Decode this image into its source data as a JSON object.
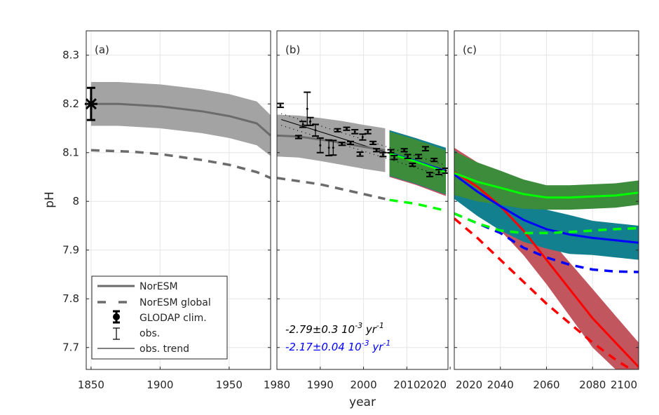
{
  "chart_data": {
    "type": "line",
    "ylabel": "pH",
    "xlabel": "year",
    "ylim": [
      7.655,
      8.35
    ],
    "yticks": [
      8.3,
      8.2,
      8.1,
      8,
      7.9,
      7.8,
      7.7
    ],
    "ytick_labels": [
      "8.3",
      "8.2",
      "8.1",
      "8",
      "7.9",
      "7.8",
      "7.7"
    ],
    "grid": true,
    "colors": {
      "noresm": "#6b6b6b",
      "noresm_band": "#a3a3a3",
      "green": "#00ff00",
      "green_band": "#3c8c3c",
      "blue": "#0000ff",
      "blue_band": "#13808f",
      "red": "#ff0000",
      "red_band": "#c2565e",
      "obs": "#000000"
    },
    "legend": {
      "placement": "bottom-left of panel (a)",
      "entries": [
        "NorESM",
        "NorESM global",
        "GLODAP clim.",
        "obs.",
        "obs. trend"
      ]
    },
    "panels": [
      {
        "label": "(a)",
        "xlim": [
          1846.5,
          1980
        ],
        "xticks": [
          1850,
          1900,
          1950
        ],
        "xtick_labels": [
          "1850",
          "1900",
          "1950"
        ],
        "series": [
          {
            "id": "noresm",
            "style": "solid",
            "color": "noresm",
            "band_color": "noresm_band",
            "x": [
              1850,
              1870,
              1900,
              1930,
              1950,
              1970,
              1980
            ],
            "y": [
              8.2,
              8.2,
              8.195,
              8.185,
              8.175,
              8.16,
              8.135
            ],
            "spread": [
              0.045,
              0.045,
              0.045,
              0.045,
              0.045,
              0.045,
              0.042
            ]
          },
          {
            "id": "noresm-global",
            "style": "dashed",
            "color": "noresm",
            "x": [
              1850,
              1880,
              1900,
              1930,
              1950,
              1970,
              1980
            ],
            "y": [
              8.105,
              8.102,
              8.097,
              8.085,
              8.075,
              8.06,
              8.048
            ]
          }
        ],
        "glodap": {
          "x": 1850,
          "y": 8.2,
          "err": 0.033
        }
      },
      {
        "label": "(b)",
        "xlim": [
          1980,
          2019.5
        ],
        "xticks": [
          1980,
          1990,
          2000,
          2010,
          2020
        ],
        "xtick_labels": [
          "1980",
          "1990",
          "2000",
          "2010",
          "2020"
        ],
        "series": [
          {
            "id": "noresm",
            "style": "solid",
            "color": "noresm",
            "band_color": "noresm_band",
            "x": [
              1980,
              1985,
              1990,
              1995,
              2000,
              2005
            ],
            "y": [
              8.135,
              8.133,
              8.127,
              8.12,
              8.112,
              8.105
            ],
            "spread": [
              0.043,
              0.043,
              0.044,
              0.045,
              0.045,
              0.045
            ]
          },
          {
            "id": "noresm-global",
            "style": "dashed",
            "color": "noresm",
            "x": [
              1980,
              1990,
              2000,
              2005
            ],
            "y": [
              8.048,
              8.035,
              8.015,
              8.005
            ]
          },
          {
            "id": "scenario-red-hist",
            "style": "solid",
            "color": "red",
            "band_color": "red_band",
            "x": [
              2006,
              2012,
              2019
            ],
            "y": [
              8.098,
              8.082,
              8.06
            ],
            "spread": [
              0.048,
              0.048,
              0.049
            ]
          },
          {
            "id": "scenario-blue-hist",
            "style": "solid",
            "color": "blue",
            "band_color": "blue_band",
            "x": [
              2006,
              2012,
              2019
            ],
            "y": [
              8.099,
              8.083,
              8.062
            ],
            "spread": [
              0.047,
              0.047,
              0.048
            ]
          },
          {
            "id": "scenario-green-hist",
            "style": "solid",
            "color": "green",
            "band_color": "green_band",
            "x": [
              2006,
              2012,
              2019
            ],
            "y": [
              8.098,
              8.082,
              8.06
            ],
            "spread": [
              0.045,
              0.045,
              0.045
            ]
          },
          {
            "id": "scenario-global-hist",
            "style": "dashed",
            "color": "green",
            "x": [
              2006,
              2012,
              2019
            ],
            "y": [
              8.003,
              7.995,
              7.981
            ]
          }
        ],
        "obs": [
          {
            "x": 1980.8,
            "y": 8.197,
            "err": 0.004
          },
          {
            "x": 1985,
            "y": 8.132,
            "err": 0.003
          },
          {
            "x": 1986,
            "y": 8.158,
            "err": 0.006
          },
          {
            "x": 1987,
            "y": 8.19,
            "err": 0.034
          },
          {
            "x": 1987.7,
            "y": 8.164,
            "err": 0.008
          },
          {
            "x": 1988.9,
            "y": 8.146,
            "err": 0.012
          },
          {
            "x": 1990,
            "y": 8.115,
            "err": 0.015
          },
          {
            "x": 1992,
            "y": 8.11,
            "err": 0.016
          },
          {
            "x": 1993,
            "y": 8.11,
            "err": 0.015
          },
          {
            "x": 1994,
            "y": 8.146,
            "err": 0.003
          },
          {
            "x": 1995,
            "y": 8.118,
            "err": 0.003
          },
          {
            "x": 1996.1,
            "y": 8.149,
            "err": 0.003
          },
          {
            "x": 1997,
            "y": 8.12,
            "err": 0.003
          },
          {
            "x": 1998,
            "y": 8.143,
            "err": 0.004
          },
          {
            "x": 1999.2,
            "y": 8.097,
            "err": 0.004
          },
          {
            "x": 1999.8,
            "y": 8.132,
            "err": 0.006
          },
          {
            "x": 2001,
            "y": 8.143,
            "err": 0.004
          },
          {
            "x": 2002.2,
            "y": 8.12,
            "err": 0.003
          },
          {
            "x": 2003,
            "y": 8.105,
            "err": 0.003
          },
          {
            "x": 2004.5,
            "y": 8.096,
            "err": 0.004
          },
          {
            "x": 2006.3,
            "y": 8.103,
            "err": 0.003
          },
          {
            "x": 2007.1,
            "y": 8.09,
            "err": 0.004
          },
          {
            "x": 2009.4,
            "y": 8.105,
            "err": 0.003
          },
          {
            "x": 2010.2,
            "y": 8.092,
            "err": 0.004
          },
          {
            "x": 2011.3,
            "y": 8.075,
            "err": 0.003
          },
          {
            "x": 2012.7,
            "y": 8.092,
            "err": 0.004
          },
          {
            "x": 2014.3,
            "y": 8.108,
            "err": 0.004
          },
          {
            "x": 2015.3,
            "y": 8.055,
            "err": 0.004
          },
          {
            "x": 2016.3,
            "y": 8.085,
            "err": 0.003
          },
          {
            "x": 2017.4,
            "y": 8.06,
            "err": 0.005
          },
          {
            "x": 2019,
            "y": 8.063,
            "err": 0.005
          }
        ],
        "obs_trend": {
          "x": [
            1981,
            2019
          ],
          "y": [
            8.168,
            8.062
          ],
          "ci": 0.012
        },
        "annotations": [
          {
            "text": "-2.79±0.3 10",
            "sup1": "-3",
            "mid": " yr",
            "sup2": "-1",
            "color": "#000000"
          },
          {
            "text": "-2.17±0.04 10",
            "sup1": "-3",
            "mid": " yr",
            "sup2": "-1",
            "color": "#0000ff"
          }
        ]
      },
      {
        "label": "(c)",
        "xlim": [
          2020,
          2100
        ],
        "xticks": [
          2020,
          2040,
          2060,
          2080,
          2100
        ],
        "xtick_labels": [
          "2020",
          "2040",
          "2060",
          "2080",
          "2100"
        ],
        "series": [
          {
            "id": "red",
            "style": "solid",
            "color": "red",
            "band_color": "red_band",
            "x": [
              2020,
              2030,
              2040,
              2050,
              2060,
              2070,
              2080,
              2090,
              2100
            ],
            "y": [
              8.06,
              8.03,
              7.99,
              7.94,
              7.88,
              7.82,
              7.76,
              7.71,
              7.66
            ],
            "spread": [
              0.05,
              0.05,
              0.05,
              0.05,
              0.05,
              0.055,
              0.06,
              0.055,
              0.05
            ]
          },
          {
            "id": "blue",
            "style": "solid",
            "color": "blue",
            "band_color": "blue_band",
            "x": [
              2020,
              2030,
              2040,
              2050,
              2060,
              2070,
              2080,
              2090,
              2100
            ],
            "y": [
              8.055,
              8.02,
              7.99,
              7.962,
              7.943,
              7.932,
              7.925,
              7.92,
              7.915
            ],
            "spread": [
              0.05,
              0.05,
              0.05,
              0.045,
              0.04,
              0.04,
              0.035,
              0.035,
              0.035
            ]
          },
          {
            "id": "green",
            "style": "solid",
            "color": "green",
            "band_color": "green_band",
            "x": [
              2020,
              2030,
              2040,
              2050,
              2060,
              2070,
              2080,
              2090,
              2100
            ],
            "y": [
              8.058,
              8.04,
              8.028,
              8.015,
              8.008,
              8.008,
              8.01,
              8.012,
              8.018
            ],
            "spread": [
              0.045,
              0.04,
              0.035,
              0.03,
              0.025,
              0.025,
              0.025,
              0.025,
              0.025
            ]
          },
          {
            "id": "red-global",
            "style": "dashed",
            "color": "red",
            "x": [
              2020,
              2030,
              2040,
              2050,
              2060,
              2070,
              2080,
              2090,
              2100
            ],
            "y": [
              7.965,
              7.925,
              7.88,
              7.835,
              7.79,
              7.75,
              7.71,
              7.675,
              7.645
            ]
          },
          {
            "id": "blue-global",
            "style": "dashed",
            "color": "blue",
            "x": [
              2020,
              2030,
              2040,
              2050,
              2060,
              2070,
              2080,
              2090,
              2100
            ],
            "y": [
              7.975,
              7.955,
              7.935,
              7.905,
              7.885,
              7.87,
              7.86,
              7.856,
              7.855
            ]
          },
          {
            "id": "green-global",
            "style": "dashed",
            "color": "green",
            "x": [
              2020,
              2030,
              2040,
              2050,
              2060,
              2070,
              2080,
              2090,
              2100
            ],
            "y": [
              7.975,
              7.955,
              7.94,
              7.935,
              7.935,
              7.937,
              7.94,
              7.943,
              7.945
            ]
          }
        ]
      }
    ]
  }
}
